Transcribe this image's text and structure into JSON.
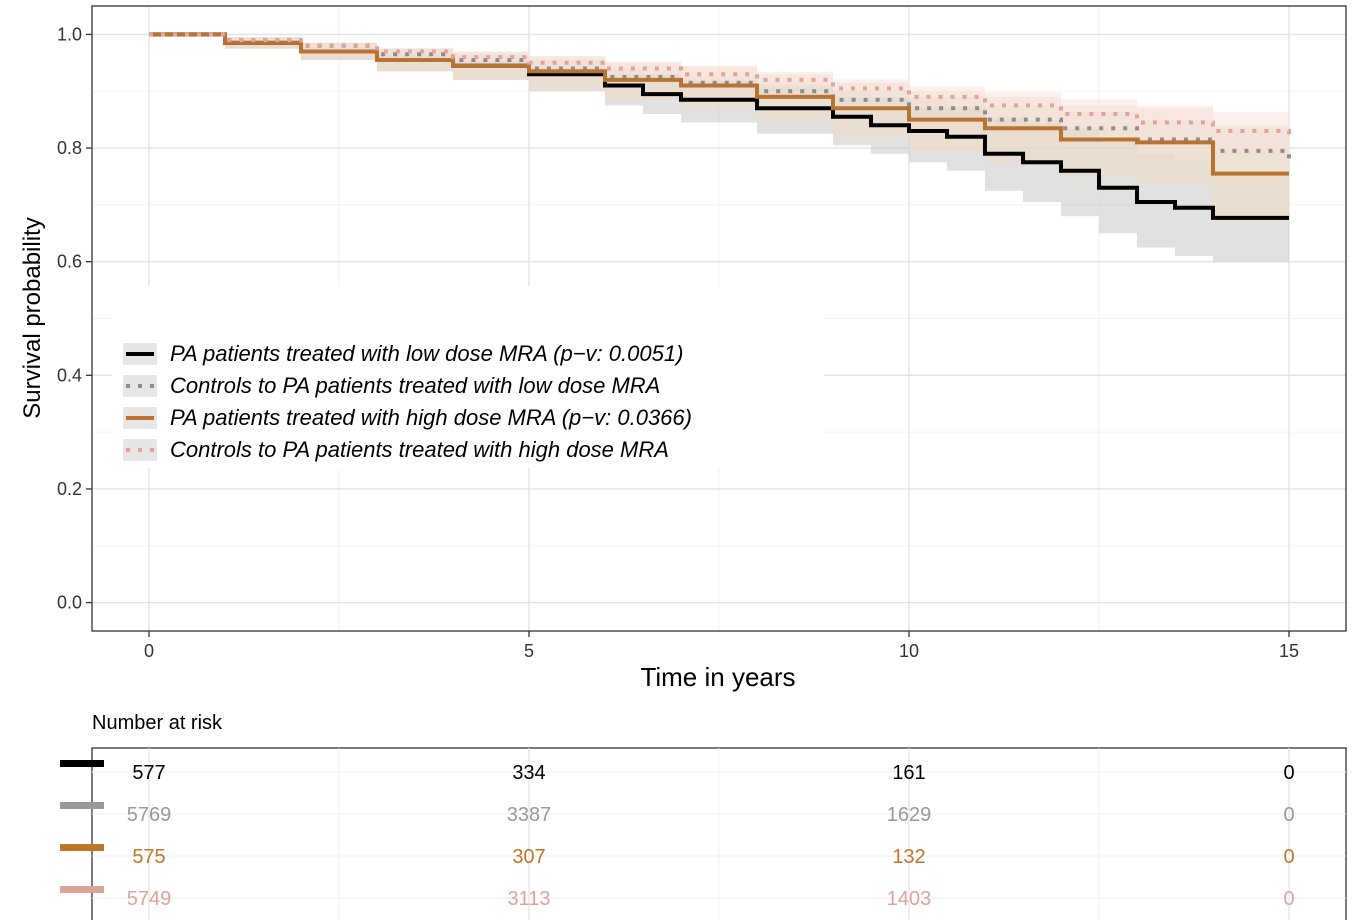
{
  "chart_data": {
    "type": "line",
    "subtype": "kaplan-meier survival curves with confidence bands",
    "ylabel": "Survival probability",
    "xlabel": "Time in years",
    "xlim": [
      -0.75,
      15.75
    ],
    "ylim": [
      -0.05,
      1.05
    ],
    "x_ticks": [
      0,
      5,
      10,
      15
    ],
    "y_ticks": [
      0.0,
      0.2,
      0.4,
      0.6,
      0.8,
      1.0
    ],
    "y_tick_labels": [
      "0.0",
      "0.2",
      "0.4",
      "0.6",
      "0.8",
      "1.0"
    ],
    "grid": true,
    "legend_position": "inside-left",
    "series": [
      {
        "name": "PA patients treated with low dose MRA (p−v: 0.0051)",
        "color": "#000000",
        "dash": "solid",
        "band_color": "#c9c9c9",
        "x": [
          0,
          1,
          2,
          3,
          4,
          5,
          6,
          6.5,
          7,
          8,
          9,
          9.5,
          10,
          10.5,
          11,
          11.5,
          12,
          12.5,
          13,
          13.5,
          14,
          15
        ],
        "y": [
          1.0,
          0.985,
          0.97,
          0.955,
          0.945,
          0.93,
          0.91,
          0.895,
          0.885,
          0.87,
          0.855,
          0.84,
          0.83,
          0.82,
          0.79,
          0.775,
          0.76,
          0.73,
          0.705,
          0.695,
          0.677,
          0.677
        ],
        "lower": [
          1.0,
          0.975,
          0.955,
          0.935,
          0.92,
          0.9,
          0.875,
          0.86,
          0.845,
          0.825,
          0.805,
          0.79,
          0.775,
          0.76,
          0.725,
          0.705,
          0.68,
          0.65,
          0.625,
          0.61,
          0.6,
          0.6
        ],
        "upper": [
          1.0,
          0.995,
          0.985,
          0.975,
          0.965,
          0.955,
          0.94,
          0.93,
          0.92,
          0.91,
          0.9,
          0.89,
          0.885,
          0.875,
          0.855,
          0.845,
          0.835,
          0.81,
          0.79,
          0.78,
          0.76,
          0.76
        ]
      },
      {
        "name": "Controls to PA patients treated with low dose MRA",
        "color": "#8c8c8c",
        "dash": "dotted",
        "band_color": "#d9d9d9",
        "x": [
          0,
          1,
          2,
          3,
          4,
          5,
          6,
          7,
          8,
          9,
          10,
          11,
          12,
          13,
          14,
          15
        ],
        "y": [
          1.0,
          0.99,
          0.98,
          0.965,
          0.955,
          0.94,
          0.925,
          0.915,
          0.9,
          0.885,
          0.87,
          0.85,
          0.835,
          0.815,
          0.795,
          0.777
        ],
        "lower": [
          1.0,
          0.987,
          0.975,
          0.96,
          0.948,
          0.932,
          0.915,
          0.903,
          0.886,
          0.868,
          0.85,
          0.826,
          0.806,
          0.78,
          0.755,
          0.73
        ],
        "upper": [
          1.0,
          0.993,
          0.985,
          0.972,
          0.962,
          0.948,
          0.935,
          0.927,
          0.914,
          0.902,
          0.89,
          0.874,
          0.864,
          0.85,
          0.835,
          0.82
        ]
      },
      {
        "name": "PA patients treated with high dose MRA (p−v: 0.0366)",
        "color": "#b87333",
        "dash": "solid",
        "band_color": "#f3dcc4",
        "x": [
          0,
          1,
          2,
          3,
          4,
          5,
          6,
          7,
          8,
          9,
          10,
          11,
          12,
          13,
          13.8,
          14,
          15
        ],
        "y": [
          1.0,
          0.985,
          0.97,
          0.955,
          0.945,
          0.935,
          0.92,
          0.91,
          0.89,
          0.87,
          0.85,
          0.835,
          0.815,
          0.81,
          0.81,
          0.755,
          0.755
        ],
        "lower": [
          1.0,
          0.975,
          0.955,
          0.935,
          0.92,
          0.905,
          0.885,
          0.87,
          0.845,
          0.82,
          0.795,
          0.775,
          0.75,
          0.74,
          0.735,
          0.67,
          0.67
        ],
        "upper": [
          1.0,
          0.995,
          0.985,
          0.975,
          0.97,
          0.962,
          0.952,
          0.945,
          0.93,
          0.915,
          0.9,
          0.89,
          0.875,
          0.87,
          0.87,
          0.84,
          0.84
        ]
      },
      {
        "name": "Controls to PA patients treated with high dose MRA",
        "color": "#e0a49a",
        "dash": "dotted",
        "band_color": "#f8e4df",
        "x": [
          0,
          1,
          2,
          3,
          4,
          5,
          6,
          7,
          8,
          9,
          10,
          11,
          12,
          13,
          14,
          15
        ],
        "y": [
          1.0,
          0.99,
          0.98,
          0.97,
          0.96,
          0.95,
          0.94,
          0.93,
          0.92,
          0.905,
          0.89,
          0.875,
          0.86,
          0.845,
          0.83,
          0.815
        ],
        "lower": [
          1.0,
          0.987,
          0.976,
          0.964,
          0.953,
          0.942,
          0.93,
          0.918,
          0.906,
          0.889,
          0.871,
          0.852,
          0.834,
          0.815,
          0.796,
          0.775
        ],
        "upper": [
          1.0,
          0.993,
          0.984,
          0.976,
          0.967,
          0.958,
          0.95,
          0.942,
          0.934,
          0.921,
          0.909,
          0.898,
          0.886,
          0.875,
          0.864,
          0.855
        ]
      }
    ],
    "risk_table": {
      "title": "Number at risk",
      "times": [
        0,
        5,
        10,
        15
      ],
      "rows": [
        {
          "color": "#000000",
          "values": [
            "577",
            "334",
            "161",
            "0"
          ]
        },
        {
          "color": "#999999",
          "values": [
            "5769",
            "3387",
            "1629",
            "0"
          ]
        },
        {
          "color": "#c0762a",
          "values": [
            "575",
            "307",
            "132",
            "0"
          ]
        },
        {
          "color": "#dba49b",
          "values": [
            "5749",
            "3113",
            "1403",
            "0"
          ]
        }
      ]
    }
  }
}
